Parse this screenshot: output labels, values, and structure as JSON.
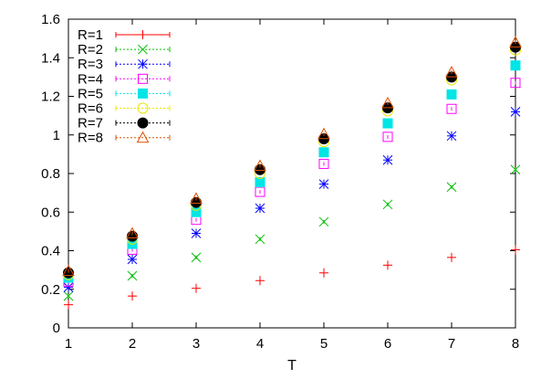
{
  "chart_data": {
    "type": "scatter",
    "title": "",
    "xlabel": "T",
    "ylabel": "",
    "xlim": [
      1,
      8
    ],
    "ylim": [
      0,
      1.6
    ],
    "x_ticks": [
      1,
      2,
      3,
      4,
      5,
      6,
      7,
      8
    ],
    "y_ticks": [
      0,
      0.2,
      0.4,
      0.6,
      0.8,
      1,
      1.2,
      1.4,
      1.6
    ],
    "grid": false,
    "legend_position": "top-left",
    "legend_style": "marker-with-errorbar-line",
    "series": [
      {
        "name": "R=1",
        "marker": "plus",
        "color": "#ff0000",
        "x": [
          1,
          2,
          3,
          4,
          5,
          6,
          7,
          8
        ],
        "y": [
          0.12,
          0.165,
          0.205,
          0.245,
          0.285,
          0.325,
          0.365,
          0.405
        ]
      },
      {
        "name": "R=2",
        "marker": "cross",
        "color": "#00c000",
        "x": [
          1,
          2,
          3,
          4,
          5,
          6,
          7,
          8
        ],
        "y": [
          0.165,
          0.27,
          0.365,
          0.46,
          0.55,
          0.64,
          0.73,
          0.82
        ]
      },
      {
        "name": "R=3",
        "marker": "asterisk",
        "color": "#0000ff",
        "x": [
          1,
          2,
          3,
          4,
          5,
          6,
          7,
          8
        ],
        "y": [
          0.21,
          0.355,
          0.49,
          0.62,
          0.745,
          0.87,
          0.995,
          1.12
        ]
      },
      {
        "name": "R=4",
        "marker": "box-open",
        "color": "#ff00ff",
        "x": [
          1,
          2,
          3,
          4,
          5,
          6,
          7,
          8
        ],
        "y": [
          0.24,
          0.405,
          0.56,
          0.705,
          0.85,
          0.99,
          1.135,
          1.27
        ]
      },
      {
        "name": "R=5",
        "marker": "box-filled",
        "color": "#00e5e5",
        "x": [
          1,
          2,
          3,
          4,
          5,
          6,
          7,
          8
        ],
        "y": [
          0.26,
          0.435,
          0.6,
          0.755,
          0.91,
          1.06,
          1.21,
          1.36
        ]
      },
      {
        "name": "R=6",
        "marker": "circle-open",
        "color": "#e8e800",
        "x": [
          1,
          2,
          3,
          4,
          5,
          6,
          7,
          8
        ],
        "y": [
          0.275,
          0.46,
          0.635,
          0.8,
          0.965,
          1.125,
          1.285,
          1.44
        ]
      },
      {
        "name": "R=7",
        "marker": "circle-filled",
        "color": "#000000",
        "x": [
          1,
          2,
          3,
          4,
          5,
          6,
          7,
          8
        ],
        "y": [
          0.285,
          0.475,
          0.65,
          0.82,
          0.98,
          1.14,
          1.3,
          1.455
        ]
      },
      {
        "name": "R=8",
        "marker": "triangle-open",
        "color": "#e05000",
        "x": [
          1,
          2,
          3,
          4,
          5,
          6,
          7,
          8
        ],
        "y": [
          0.295,
          0.49,
          0.67,
          0.84,
          1.005,
          1.165,
          1.325,
          1.48
        ]
      }
    ]
  }
}
